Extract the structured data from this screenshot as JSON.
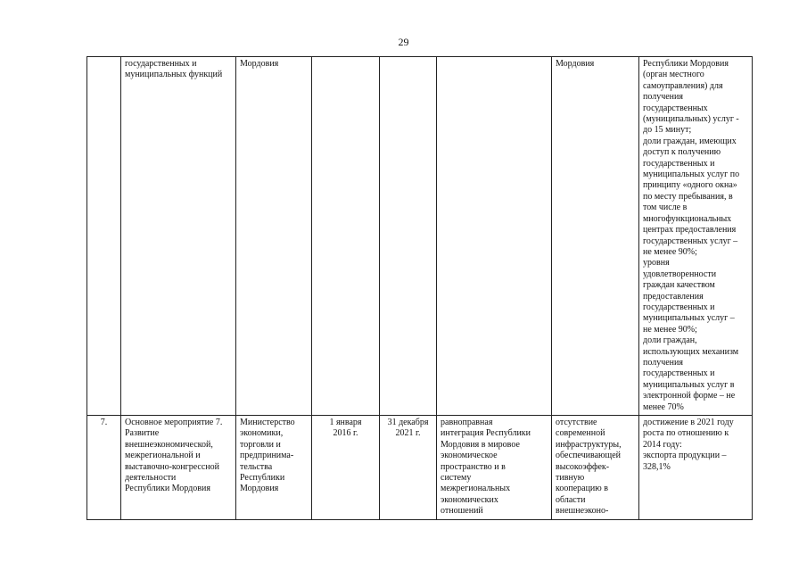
{
  "page_number": "29",
  "rows": [
    {
      "num": "",
      "name": "государственных и\nмуниципальных функций",
      "executor": "Мордовия",
      "start": "",
      "end": "",
      "result": "",
      "consequence": "Мордовия",
      "indicator": "Республики Мордовия\n(орган местного\nсамоуправления) для\nполучения\nгосударственных\n(муниципальных) услуг -\nдо 15 минут;\nдоли граждан, имеющих\nдоступ к получению\nгосударственных и\nмуниципальных услуг по\nпринципу «одного окна»\nпо месту пребывания, в\nтом числе в\nмногофункциональных\nцентрах предоставления\nгосударственных услуг –\nне менее 90%;\nуровня\nудовлетворенности\nграждан качеством\nпредоставления\nгосударственных и\nмуниципальных услуг –\nне менее 90%;\nдоли граждан,\nиспользующих механизм\nполучения\nгосударственных и\nмуниципальных услуг в\nэлектронной форме – не\nменее 70%"
    },
    {
      "num": "7.",
      "name": "Основное мероприятие 7.\nРазвитие\nвнешнеэкономической,\nмежрегиональной и\nвыставочно-конгрессной\nдеятельности\nРеспублики Мордовия",
      "executor": "Министерство\nэкономики,\nторговли и\nпредпринима-\nтельства\nРеспублики\nМордовия",
      "start": "1 января\n2016 г.",
      "end": "31 декабря\n2021 г.",
      "result": "равноправная\nинтеграция Республики\nМордовия в мировое\nэкономическое\nпространство и в\nсистему\nмежрегиональных\nэкономических\nотношений",
      "consequence": "отсутствие\nсовременной\nинфраструктуры,\nобеспечивающей\nвысокоэффек-\nтивную\nкооперацию в\nобласти\nвнешнеэконо-",
      "indicator": "достижение в 2021 году\nроста по отношению к\n2014 году:\nэкспорта продукции –\n328,1%"
    }
  ]
}
